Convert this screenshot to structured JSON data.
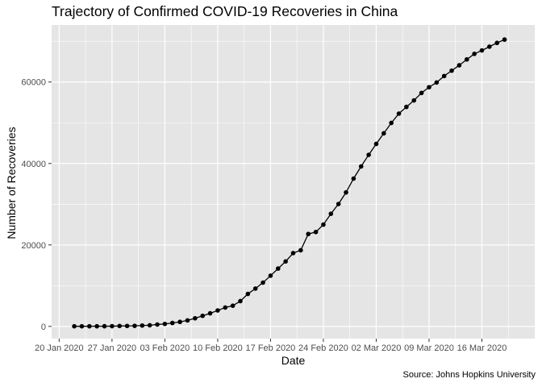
{
  "chart_data": {
    "type": "line",
    "title": "Trajectory of Confirmed COVID-19 Recoveries in China",
    "xlabel": "Date",
    "ylabel": "Number of Recoveries",
    "caption": "Source: Johns Hopkins University",
    "x_start": "2020-01-22",
    "x_tick_labels": [
      "20 Jan 2020",
      "27 Jan 2020",
      "03 Feb 2020",
      "10 Feb 2020",
      "17 Feb 2020",
      "24 Feb 2020",
      "02 Mar 2020",
      "09 Mar 2020",
      "16 Mar 2020"
    ],
    "y_ticks": [
      0,
      20000,
      40000,
      60000
    ],
    "y_tick_labels": [
      "0",
      "20000",
      "40000",
      "60000"
    ],
    "ylim": [
      -3000,
      74000
    ],
    "xlim": [
      "2020-01-19",
      "2020-03-23"
    ],
    "grid": true,
    "series": [
      {
        "values": [
          28,
          30,
          36,
          39,
          49,
          58,
          101,
          120,
          135,
          214,
          275,
          463,
          614,
          843,
          1115,
          1476,
          1998,
          2595,
          3218,
          3917,
          4635,
          5079,
          6213,
          7973,
          9294,
          10748,
          12455,
          14199,
          15952,
          18002,
          18693,
          22687,
          23170,
          24990,
          27650,
          30053,
          32898,
          36291,
          39279,
          42118,
          44810,
          47404,
          49955,
          52240,
          53888,
          55478,
          57320,
          58735,
          59882,
          61475,
          62793,
          64111,
          65541,
          66911,
          67749,
          68679,
          69601,
          70420
        ],
        "color": "#000000"
      }
    ],
    "colors": {
      "panel_bg": "#e5e5e5",
      "grid": "#ffffff",
      "text": "#4d4d4d"
    }
  }
}
